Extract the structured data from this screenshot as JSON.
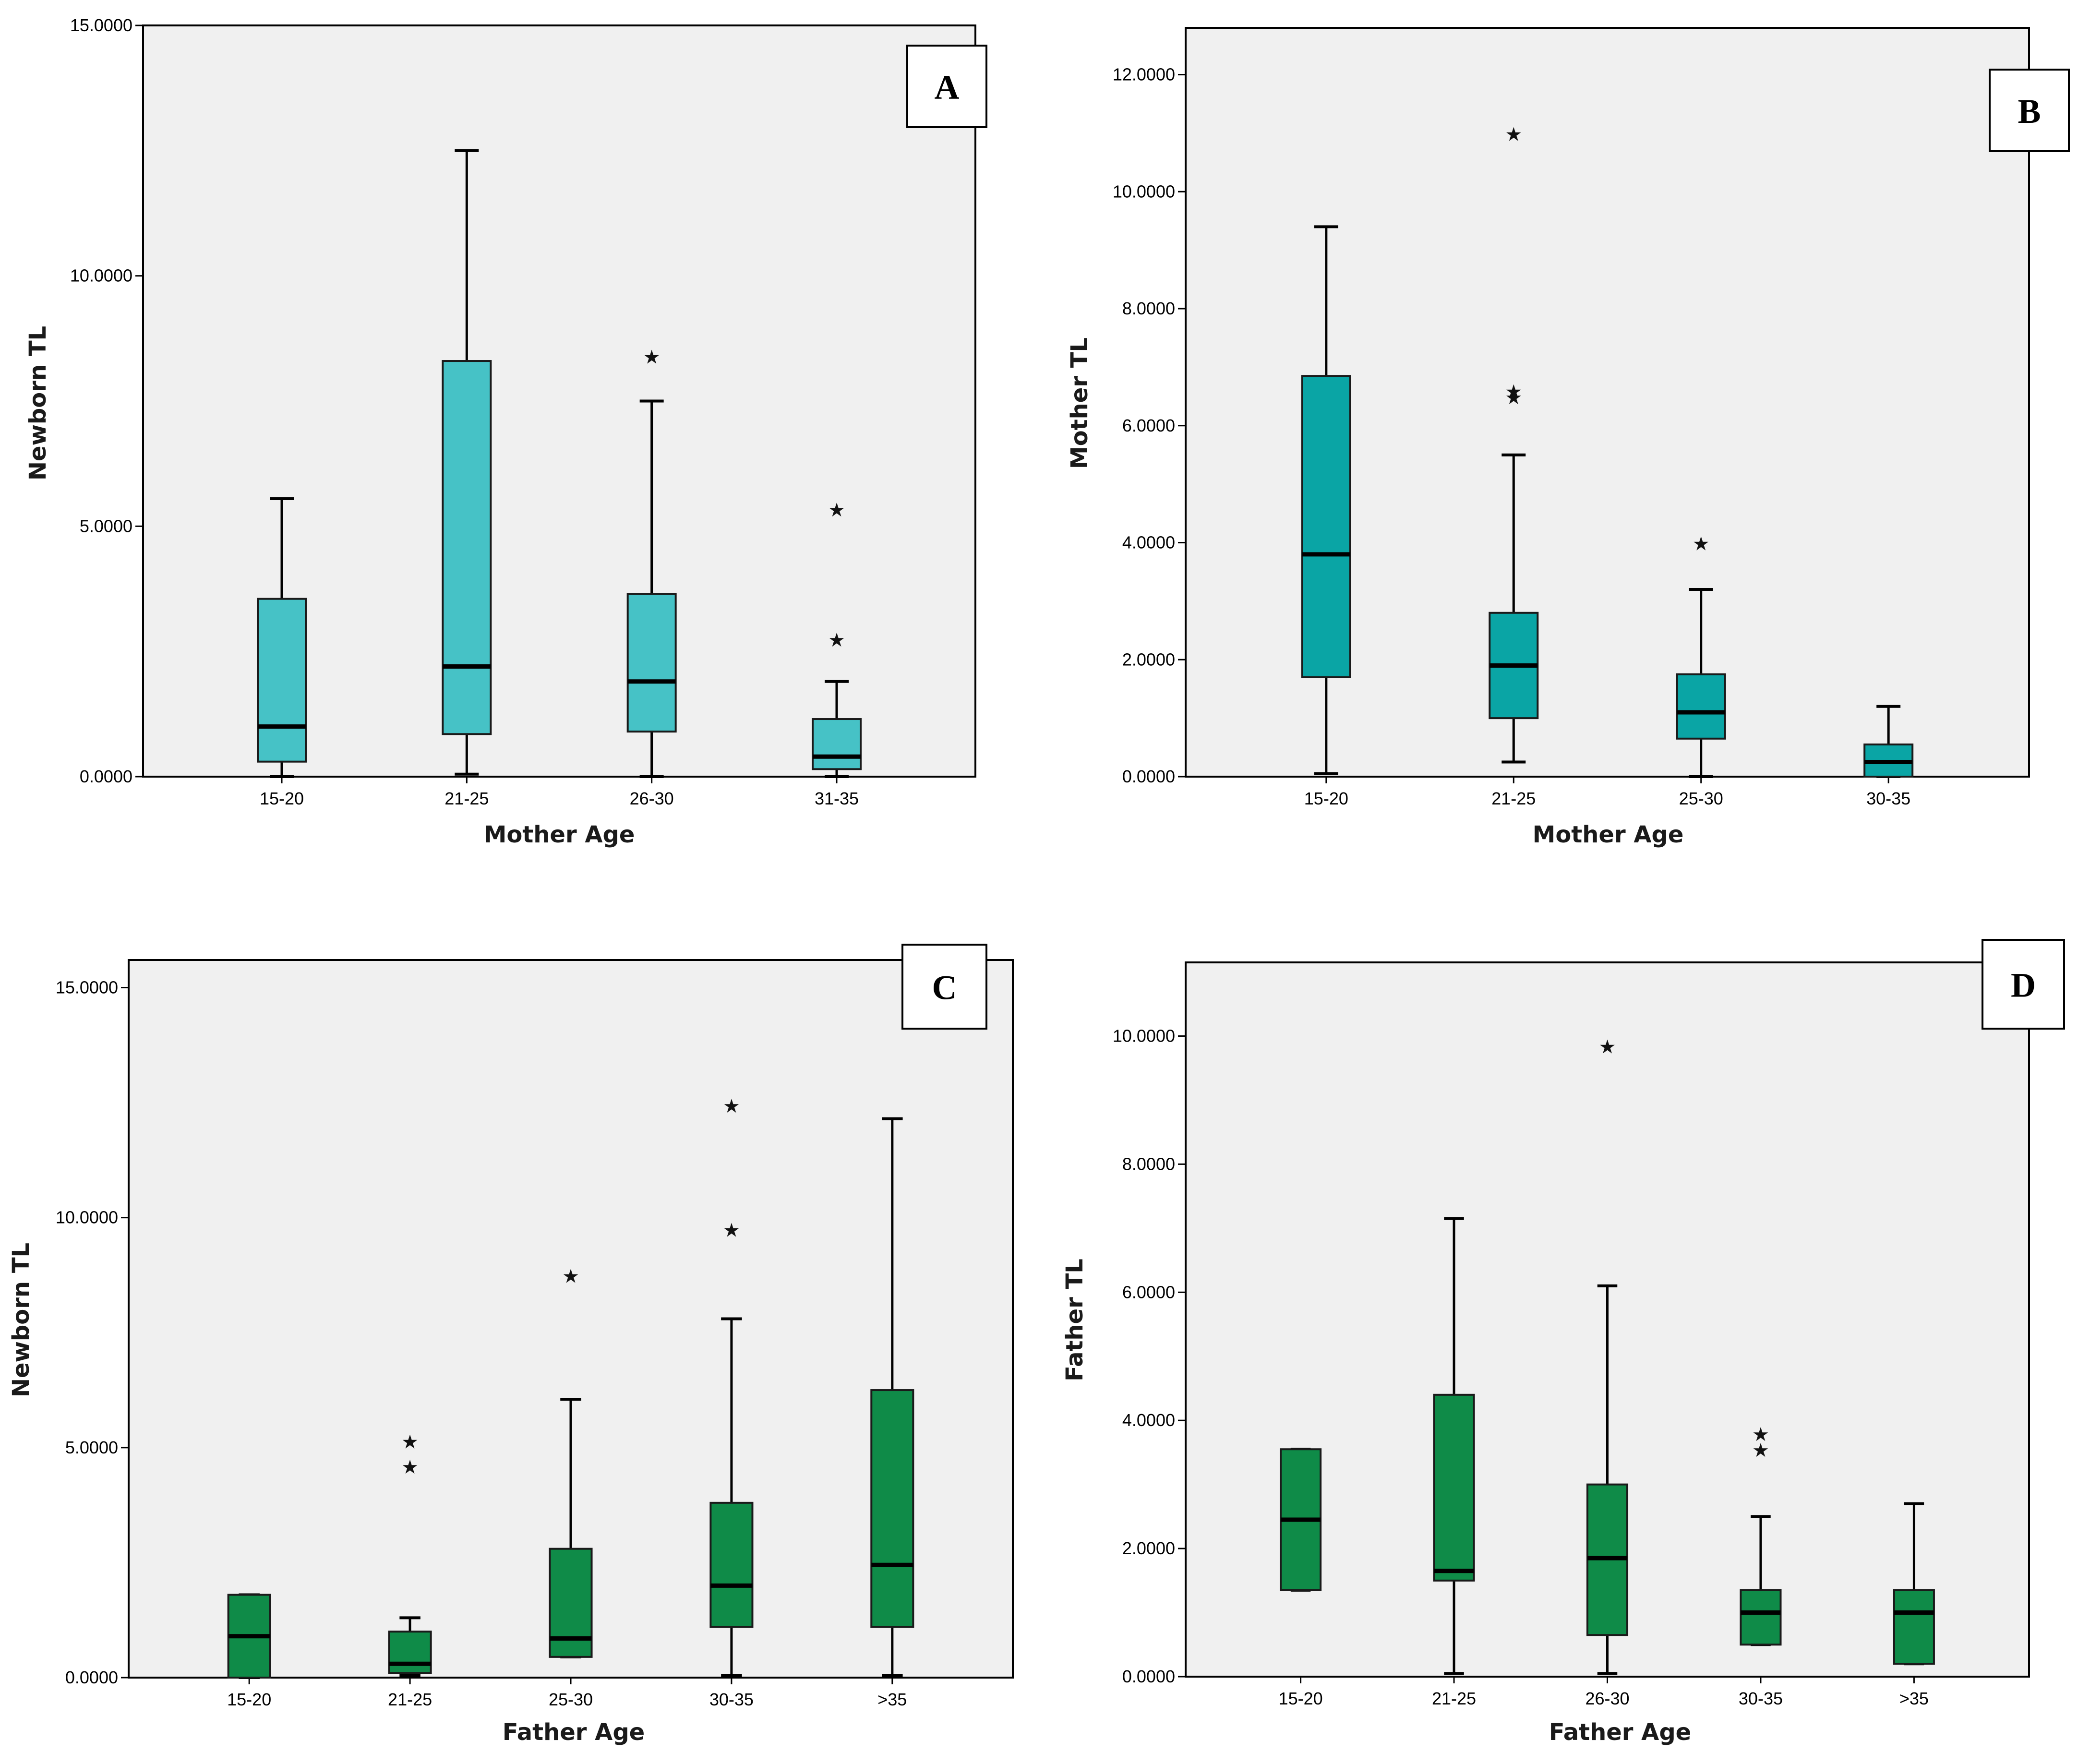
{
  "chart_data": [
    {
      "id": "A",
      "type": "boxplot",
      "panel_label": "A",
      "xlabel": "Mother Age",
      "ylabel": "Newborn TL",
      "ylim": [
        0,
        15
      ],
      "yticks": [
        0,
        5,
        10,
        15
      ],
      "ytick_labels": [
        "0.0000",
        "5.0000",
        "10.0000",
        "15.0000"
      ],
      "categories": [
        "15-20",
        "21-25",
        "26-30",
        "31-35"
      ],
      "box_color": "#46C2C6",
      "boxes": [
        {
          "category": "15-20",
          "min": 0.0,
          "q1": 0.3,
          "median": 1.0,
          "q3": 3.55,
          "max": 5.55,
          "outliers": []
        },
        {
          "category": "21-25",
          "min": 0.05,
          "q1": 0.85,
          "median": 2.2,
          "q3": 8.3,
          "max": 12.5,
          "outliers": []
        },
        {
          "category": "26-30",
          "min": 0.0,
          "q1": 0.9,
          "median": 1.9,
          "q3": 3.65,
          "max": 7.5,
          "outliers": [
            8.4
          ]
        },
        {
          "category": "31-35",
          "min": 0.0,
          "q1": 0.15,
          "median": 0.4,
          "q3": 1.15,
          "max": 1.9,
          "outliers": [
            5.35,
            2.75
          ]
        }
      ]
    },
    {
      "id": "B",
      "type": "boxplot",
      "panel_label": "B",
      "xlabel": "Mother Age",
      "ylabel": "Mother TL",
      "ylim": [
        0,
        12.8
      ],
      "yticks": [
        0,
        2,
        4,
        6,
        8,
        10,
        12
      ],
      "ytick_labels": [
        "0.0000",
        "2.0000",
        "4.0000",
        "6.0000",
        "8.0000",
        "10.0000",
        "12.0000"
      ],
      "categories": [
        "15-20",
        "21-25",
        "25-30",
        "30-35"
      ],
      "box_color": "#0AA5A5",
      "boxes": [
        {
          "category": "15-20",
          "min": 0.05,
          "q1": 1.7,
          "median": 3.8,
          "q3": 6.85,
          "max": 9.4,
          "outliers": []
        },
        {
          "category": "21-25",
          "min": 0.25,
          "q1": 1.0,
          "median": 1.9,
          "q3": 2.8,
          "max": 5.5,
          "outliers": [
            11.0,
            6.6,
            6.5
          ]
        },
        {
          "category": "25-30",
          "min": 0.0,
          "q1": 0.65,
          "median": 1.1,
          "q3": 1.75,
          "max": 3.2,
          "outliers": [
            4.0
          ]
        },
        {
          "category": "30-35",
          "min": 0.0,
          "q1": 0.0,
          "median": 0.25,
          "q3": 0.55,
          "max": 1.2,
          "outliers": []
        }
      ]
    },
    {
      "id": "C",
      "type": "boxplot",
      "panel_label": "C",
      "xlabel": "Father Age",
      "ylabel": "Newborn TL",
      "ylim": [
        0,
        15.6
      ],
      "yticks": [
        0,
        5,
        10,
        15
      ],
      "ytick_labels": [
        "0.0000",
        "5.0000",
        "10.0000",
        "15.0000"
      ],
      "categories": [
        "15-20",
        "21-25",
        "25-30",
        "30-35",
        ">35"
      ],
      "box_color": "#0F8B48",
      "boxes": [
        {
          "category": "15-20",
          "min": 0.0,
          "q1": 0.0,
          "median": 0.9,
          "q3": 1.8,
          "max": 1.8,
          "outliers": []
        },
        {
          "category": "21-25",
          "min": 0.05,
          "q1": 0.1,
          "median": 0.3,
          "q3": 1.0,
          "max": 1.3,
          "outliers": [
            5.15,
            4.6
          ]
        },
        {
          "category": "25-30",
          "min": 0.45,
          "q1": 0.45,
          "median": 0.85,
          "q3": 2.8,
          "max": 6.05,
          "outliers": [
            8.75
          ]
        },
        {
          "category": "30-35",
          "min": 0.05,
          "q1": 1.1,
          "median": 2.0,
          "q3": 3.8,
          "max": 7.8,
          "outliers": [
            12.45,
            9.75
          ]
        },
        {
          "category": ">35",
          "min": 0.05,
          "q1": 1.1,
          "median": 2.45,
          "q3": 6.25,
          "max": 12.15,
          "outliers": []
        }
      ]
    },
    {
      "id": "D",
      "type": "boxplot",
      "panel_label": "D",
      "xlabel": "Father Age",
      "ylabel": "Father TL",
      "ylim": [
        0,
        11.15
      ],
      "yticks": [
        0,
        2,
        4,
        6,
        8,
        10
      ],
      "ytick_labels": [
        "0.0000",
        "2.0000",
        "4.0000",
        "6.0000",
        "8.0000",
        "10.0000"
      ],
      "categories": [
        "15-20",
        "21-25",
        "26-30",
        "30-35",
        ">35"
      ],
      "box_color": "#0F8B48",
      "boxes": [
        {
          "category": "15-20",
          "min": 1.35,
          "q1": 1.35,
          "median": 2.45,
          "q3": 3.55,
          "max": 3.55,
          "outliers": []
        },
        {
          "category": "21-25",
          "min": 0.05,
          "q1": 1.5,
          "median": 1.65,
          "q3": 4.4,
          "max": 7.15,
          "outliers": []
        },
        {
          "category": "26-30",
          "min": 0.05,
          "q1": 0.65,
          "median": 1.85,
          "q3": 3.0,
          "max": 6.1,
          "outliers": [
            9.85
          ]
        },
        {
          "category": "30-35",
          "min": 0.5,
          "q1": 0.5,
          "median": 1.0,
          "q3": 1.35,
          "max": 2.5,
          "outliers": [
            3.8,
            3.55
          ]
        },
        {
          "category": ">35",
          "min": 0.2,
          "q1": 0.2,
          "median": 1.0,
          "q3": 1.35,
          "max": 2.7,
          "outliers": []
        }
      ]
    }
  ]
}
